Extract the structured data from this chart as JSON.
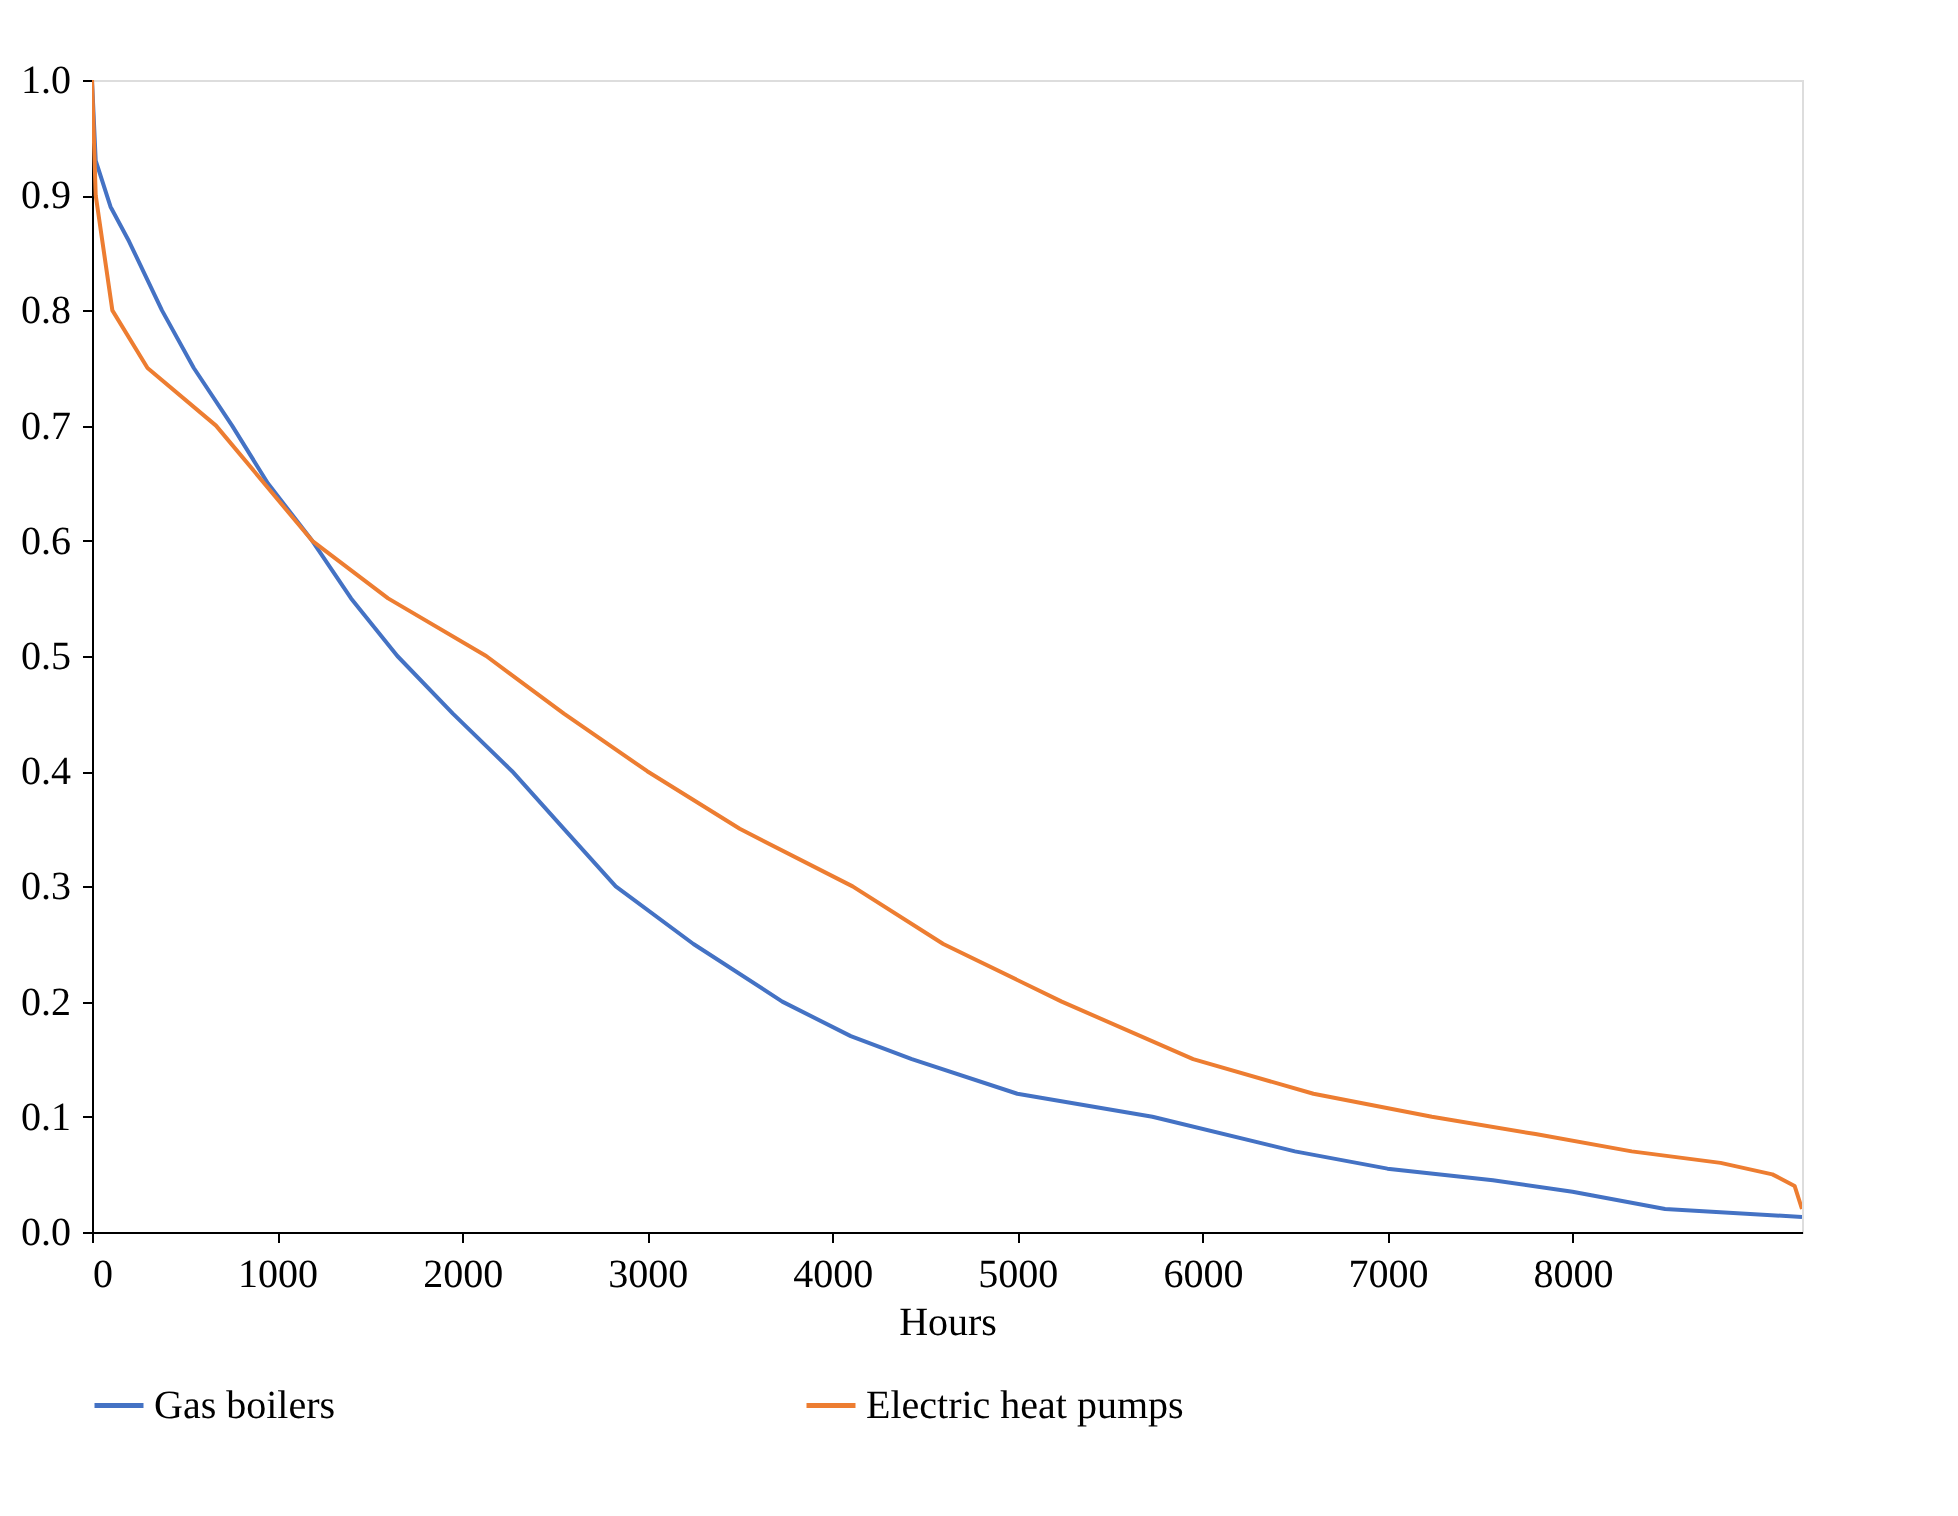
{
  "chart_data": {
    "type": "line",
    "xlabel": "Hours",
    "xlim": [
      0,
      9240
    ],
    "xticks": [
      0,
      1000,
      2000,
      3000,
      4000,
      5000,
      6000,
      7000,
      8000
    ],
    "ylim": [
      0,
      1.0
    ],
    "yticks": [
      {
        "value": 0,
        "label": "0.0"
      },
      0.1,
      0.2,
      0.3,
      0.4,
      0.5,
      0.6,
      0.7,
      0.8,
      0.9,
      {
        "value": 1,
        "label": "1.0"
      }
    ],
    "legend": "bottom",
    "line_style": "solid",
    "marker": "none",
    "series": [
      {
        "name": "Gas boilers",
        "color": "#4472c4",
        "x": [
          0,
          20,
          100,
          200,
          378,
          550,
          757,
          950,
          1190,
          1400,
          1650,
          1950,
          2270,
          2550,
          2830,
          3250,
          3730,
          4100,
          4430,
          5000,
          5730,
          6500,
          7000,
          7570,
          8000,
          8500,
          9240
        ],
        "values": [
          1.0,
          0.93,
          0.89,
          0.86,
          0.8,
          0.75,
          0.7,
          0.65,
          0.6,
          0.55,
          0.5,
          0.45,
          0.4,
          0.35,
          0.3,
          0.25,
          0.2,
          0.17,
          0.15,
          0.12,
          0.1,
          0.07,
          0.055,
          0.045,
          0.035,
          0.02,
          0.013
        ]
      },
      {
        "name": "Electric heat pumps",
        "color": "#ed7d31",
        "x": [
          0,
          20,
          110,
          300,
          670,
          1190,
          1600,
          2130,
          2550,
          3000,
          3500,
          4110,
          4600,
          5240,
          5950,
          6600,
          7240,
          7800,
          8320,
          8800,
          9080,
          9200,
          9240
        ],
        "values": [
          1.0,
          0.9,
          0.8,
          0.75,
          0.7,
          0.6,
          0.55,
          0.5,
          0.45,
          0.4,
          0.35,
          0.3,
          0.25,
          0.2,
          0.15,
          0.12,
          0.1,
          0.085,
          0.07,
          0.06,
          0.05,
          0.04,
          0.02
        ]
      }
    ]
  }
}
